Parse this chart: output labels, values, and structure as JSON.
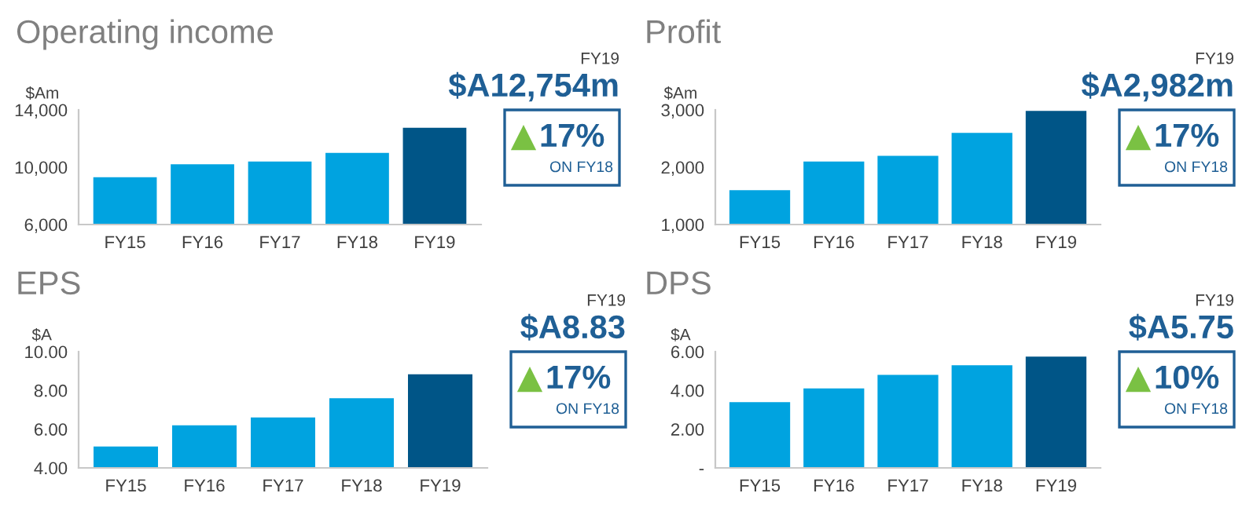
{
  "chart_data": [
    {
      "type": "bar",
      "title": "Operating income",
      "ylabel": "$Am",
      "categories": [
        "FY15",
        "FY16",
        "FY17",
        "FY18",
        "FY19"
      ],
      "values": [
        9300,
        10200,
        10400,
        11000,
        12754
      ],
      "colors": [
        "#00a3e0",
        "#00a3e0",
        "#00a3e0",
        "#00a3e0",
        "#005587"
      ],
      "ylim": [
        6000,
        14000
      ],
      "yticks": [
        {
          "value": 6000,
          "label": "6,000"
        },
        {
          "value": 10000,
          "label": "10,000"
        },
        {
          "value": 14000,
          "label": "14,000"
        }
      ],
      "grid": false,
      "annotations": [
        "FY19",
        "$A12,754m",
        "17%",
        "ON FY18"
      ]
    },
    {
      "type": "bar",
      "title": "Profit",
      "ylabel": "$Am",
      "categories": [
        "FY15",
        "FY16",
        "FY17",
        "FY18",
        "FY19"
      ],
      "values": [
        1600,
        2100,
        2200,
        2600,
        2982
      ],
      "colors": [
        "#00a3e0",
        "#00a3e0",
        "#00a3e0",
        "#00a3e0",
        "#005587"
      ],
      "ylim": [
        1000,
        3000
      ],
      "yticks": [
        {
          "value": 1000,
          "label": "1,000"
        },
        {
          "value": 2000,
          "label": "2,000"
        },
        {
          "value": 3000,
          "label": "3,000"
        }
      ],
      "grid": false,
      "annotations": [
        "FY19",
        "$A2,982m",
        "17%",
        "ON FY18"
      ]
    },
    {
      "type": "bar",
      "title": "EPS",
      "ylabel": "$A",
      "categories": [
        "FY15",
        "FY16",
        "FY17",
        "FY18",
        "FY19"
      ],
      "values": [
        5.1,
        6.2,
        6.6,
        7.6,
        8.83
      ],
      "colors": [
        "#00a3e0",
        "#00a3e0",
        "#00a3e0",
        "#00a3e0",
        "#005587"
      ],
      "ylim": [
        4,
        10
      ],
      "yticks": [
        {
          "value": 4,
          "label": "4.00"
        },
        {
          "value": 6,
          "label": "6.00"
        },
        {
          "value": 8,
          "label": "8.00"
        },
        {
          "value": 10,
          "label": "10.00"
        }
      ],
      "grid": false,
      "annotations": [
        "FY19",
        "$A8.83",
        "17%",
        "ON FY18"
      ]
    },
    {
      "type": "bar",
      "title": "DPS",
      "ylabel": "$A",
      "categories": [
        "FY15",
        "FY16",
        "FY17",
        "FY18",
        "FY19"
      ],
      "values": [
        3.4,
        4.1,
        4.8,
        5.3,
        5.75
      ],
      "colors": [
        "#00a3e0",
        "#00a3e0",
        "#00a3e0",
        "#00a3e0",
        "#005587"
      ],
      "ylim": [
        0,
        6
      ],
      "yticks": [
        {
          "value": 0,
          "label": "-"
        },
        {
          "value": 2,
          "label": "2.00"
        },
        {
          "value": 4,
          "label": "4.00"
        },
        {
          "value": 6,
          "label": "6.00"
        }
      ],
      "grid": false,
      "annotations": [
        "FY19",
        "$A5.75",
        "10%",
        "ON FY18"
      ]
    }
  ]
}
